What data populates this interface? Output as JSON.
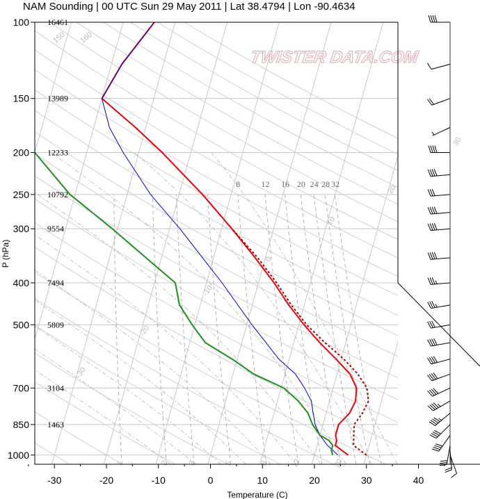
{
  "chart_data": {
    "type": "line",
    "title": "NAM Sounding | 00 UTC Sun 29 May 2011 | Lat 38.4794 | Lon -90.4634",
    "xlabel": "Temperature (C)",
    "ylabel": "P (hPa)",
    "xlim": [
      -35,
      45
    ],
    "ylim": [
      1050,
      100
    ],
    "y_scale": "log",
    "skew": "skew-T log-P",
    "grid": true,
    "x_ticks": [
      -30,
      -20,
      -10,
      0,
      10,
      20,
      30,
      40
    ],
    "pressure_ticks": [
      100,
      150,
      200,
      250,
      300,
      400,
      500,
      700,
      850,
      1000
    ],
    "height_labels": [
      "16461",
      "13989",
      "12233",
      "10792",
      "9554",
      "7494",
      "5809",
      "3104",
      "1463"
    ],
    "height_levels": [
      100,
      150,
      200,
      250,
      300,
      400,
      500,
      700,
      850
    ],
    "mixing_ratio_labels_upper": [
      "8",
      "12",
      "16",
      "20",
      "24",
      "28",
      "32"
    ],
    "mixing_ratio_labels_lower": [
      "1",
      "2",
      "3",
      "5",
      "8",
      "12",
      "20"
    ],
    "isotherm_labels": [
      "-30",
      "-20",
      "-10",
      "0",
      "10",
      "20",
      "30"
    ],
    "dry_adiabat_labels": [
      "40",
      "50",
      "60",
      "70",
      "80",
      "90",
      "100",
      "110",
      "120",
      "130",
      "140",
      "150",
      "160"
    ],
    "watermark": "TWISTER DATA.COM",
    "series": [
      {
        "key": "temperature",
        "color": "#e8000b",
        "points": [
          [
            1000,
            26.5
          ],
          [
            975,
            25
          ],
          [
            950,
            23.5
          ],
          [
            925,
            23.5
          ],
          [
            900,
            23
          ],
          [
            850,
            23
          ],
          [
            800,
            24.5
          ],
          [
            750,
            25
          ],
          [
            700,
            24.5
          ],
          [
            650,
            22.5
          ],
          [
            600,
            19
          ],
          [
            550,
            15
          ],
          [
            500,
            11
          ],
          [
            450,
            7
          ],
          [
            400,
            3
          ],
          [
            350,
            -2
          ],
          [
            300,
            -8
          ],
          [
            250,
            -15.5
          ],
          [
            200,
            -25.5
          ],
          [
            175,
            -32
          ],
          [
            150,
            -40
          ],
          [
            125,
            -38
          ],
          [
            100,
            -34
          ]
        ]
      },
      {
        "key": "parcel",
        "color": "#0000cc",
        "points": [
          [
            1000,
            24.5
          ],
          [
            950,
            22
          ],
          [
            900,
            20
          ],
          [
            850,
            18.5
          ],
          [
            800,
            17.5
          ],
          [
            750,
            16.5
          ],
          [
            700,
            14.5
          ],
          [
            650,
            12
          ],
          [
            600,
            8
          ],
          [
            500,
            1
          ],
          [
            400,
            -7
          ],
          [
            300,
            -18
          ],
          [
            250,
            -25.5
          ],
          [
            200,
            -33
          ],
          [
            175,
            -37
          ],
          [
            150,
            -40
          ],
          [
            125,
            -38
          ],
          [
            100,
            -34
          ]
        ]
      },
      {
        "key": "virtual_temperature",
        "color": "#a00000",
        "dash": true,
        "points": [
          [
            1000,
            30
          ],
          [
            950,
            27
          ],
          [
            900,
            26.5
          ],
          [
            850,
            26
          ],
          [
            800,
            27
          ],
          [
            750,
            27.5
          ],
          [
            700,
            26.5
          ],
          [
            650,
            24
          ],
          [
            600,
            20.5
          ],
          [
            550,
            16
          ],
          [
            500,
            11.5
          ],
          [
            450,
            7.5
          ],
          [
            400,
            3.5
          ],
          [
            350,
            -1.5
          ],
          [
            300,
            -8
          ]
        ]
      },
      {
        "key": "dewpoint",
        "color": "#1f8f1f",
        "points": [
          [
            1000,
            23.5
          ],
          [
            975,
            23
          ],
          [
            950,
            23
          ],
          [
            925,
            22
          ],
          [
            900,
            20
          ],
          [
            850,
            18
          ],
          [
            800,
            16.5
          ],
          [
            750,
            14
          ],
          [
            700,
            10.5
          ],
          [
            650,
            4
          ],
          [
            600,
            -1
          ],
          [
            550,
            -7
          ],
          [
            500,
            -10.5
          ],
          [
            450,
            -14
          ],
          [
            400,
            -16
          ],
          [
            350,
            -23
          ],
          [
            300,
            -31
          ],
          [
            250,
            -41
          ],
          [
            200,
            -50
          ],
          [
            175,
            -57
          ],
          [
            150,
            -59
          ],
          [
            100,
            -59
          ]
        ]
      }
    ],
    "wind_barbs": [
      {
        "p": 1000,
        "dir": 160,
        "spd": 10
      },
      {
        "p": 975,
        "dir": 175,
        "spd": 20
      },
      {
        "p": 950,
        "dir": 190,
        "spd": 30
      },
      {
        "p": 900,
        "dir": 215,
        "spd": 40
      },
      {
        "p": 850,
        "dir": 225,
        "spd": 40
      },
      {
        "p": 800,
        "dir": 230,
        "spd": 45
      },
      {
        "p": 750,
        "dir": 240,
        "spd": 45
      },
      {
        "p": 700,
        "dir": 245,
        "spd": 40
      },
      {
        "p": 650,
        "dir": 250,
        "spd": 40
      },
      {
        "p": 600,
        "dir": 255,
        "spd": 40
      },
      {
        "p": 550,
        "dir": 260,
        "spd": 40
      },
      {
        "p": 500,
        "dir": 260,
        "spd": 30
      },
      {
        "p": 450,
        "dir": 260,
        "spd": 35
      },
      {
        "p": 400,
        "dir": 265,
        "spd": 35
      },
      {
        "p": 350,
        "dir": 265,
        "spd": 40
      },
      {
        "p": 300,
        "dir": 265,
        "spd": 40
      },
      {
        "p": 275,
        "dir": 265,
        "spd": 40
      },
      {
        "p": 250,
        "dir": 265,
        "spd": 30
      },
      {
        "p": 225,
        "dir": 265,
        "spd": 40
      },
      {
        "p": 200,
        "dir": 270,
        "spd": 40
      },
      {
        "p": 175,
        "dir": 245,
        "spd": 5
      },
      {
        "p": 150,
        "dir": 250,
        "spd": 20
      },
      {
        "p": 125,
        "dir": 255,
        "spd": 10
      },
      {
        "p": 100,
        "dir": 270,
        "spd": 40
      }
    ]
  }
}
